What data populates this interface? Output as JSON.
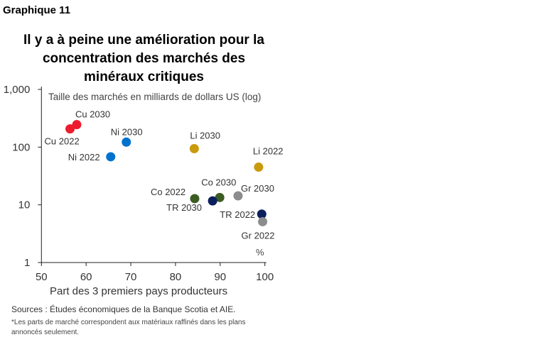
{
  "header": {
    "graph_number": "Graphique 11"
  },
  "chart_data": {
    "type": "scatter",
    "title": "Il y a à peine une amélioration pour la concentration des marchés des minéraux critiques",
    "xlabel": "Part des 3 premiers pays producteurs",
    "x_unit_label": "%",
    "ylabel": "Taille des marchés en milliards de dollars US (log)",
    "xlim": [
      50,
      100
    ],
    "ylim": [
      1,
      1000
    ],
    "y_scale": "log",
    "grid": false,
    "x_ticks": [
      "50",
      "60",
      "70",
      "80",
      "90",
      "100"
    ],
    "y_ticks": [
      "1",
      "10",
      "100",
      "1,000"
    ],
    "points": [
      {
        "label": "Cu 2022",
        "x": 56.4,
        "y": 207,
        "color": "#EC1C2E"
      },
      {
        "label": "Cu 2030",
        "x": 57.9,
        "y": 245,
        "color": "#EC1C2E"
      },
      {
        "label": "Ni 2022",
        "x": 65.5,
        "y": 68,
        "color": "#0072CE"
      },
      {
        "label": "Ni 2030",
        "x": 69.0,
        "y": 122,
        "color": "#0072CE"
      },
      {
        "label": "Li 2030",
        "x": 84.2,
        "y": 94,
        "color": "#C99A0C"
      },
      {
        "label": "Li 2022",
        "x": 98.6,
        "y": 45,
        "color": "#C99A0C"
      },
      {
        "label": "Co 2022",
        "x": 84.3,
        "y": 12.8,
        "color": "#3B5C22"
      },
      {
        "label": "Co 2030",
        "x": 89.9,
        "y": 13.4,
        "color": "#3B5C22"
      },
      {
        "label": "TR 2030",
        "x": 88.3,
        "y": 11.7,
        "color": "#0B1F5C"
      },
      {
        "label": "Gr 2030",
        "x": 94.0,
        "y": 14.3,
        "color": "#8C8C8C"
      },
      {
        "label": "TR 2022",
        "x": 99.3,
        "y": 6.9,
        "color": "#0B1F5C"
      },
      {
        "label": "Gr 2022",
        "x": 99.5,
        "y": 5.1,
        "color": "#8C8C8C"
      }
    ]
  },
  "footer": {
    "sources": "Sources : Études économiques de la Banque Scotia  et AIE.",
    "note": "*Les parts de marché correspondent aux matériaux raffinés dans les plans annoncés seulement."
  }
}
